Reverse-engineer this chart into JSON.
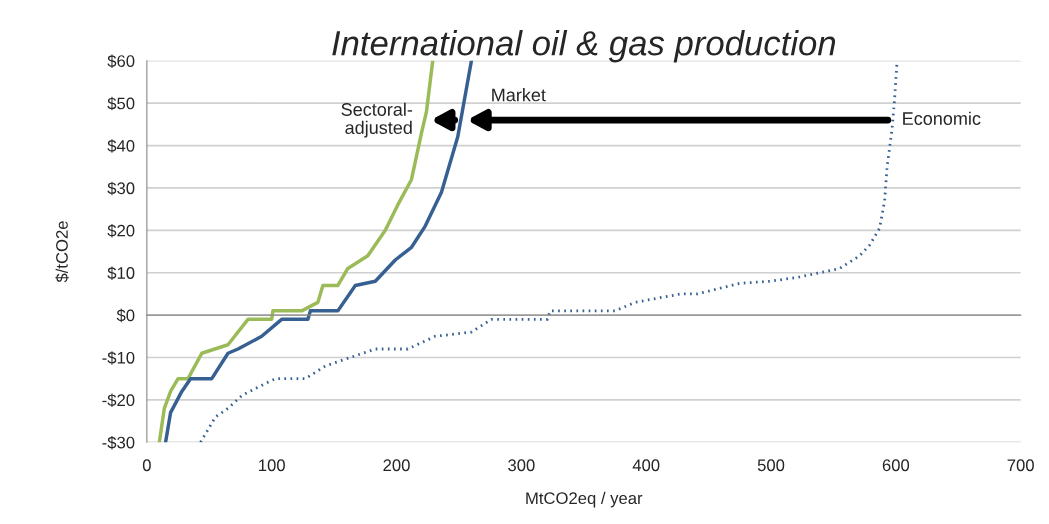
{
  "chart_data": {
    "type": "line",
    "title": "International oil & gas production",
    "xlabel": "MtCO2eq / year",
    "ylabel": "$/tCO2e",
    "xlim": [
      0,
      700
    ],
    "xticks": [
      0,
      100,
      200,
      300,
      400,
      500,
      600,
      700
    ],
    "ylim": [
      -30,
      60
    ],
    "yticks": [
      {
        "value": -30,
        "label": "-$30"
      },
      {
        "value": -20,
        "label": "-$20"
      },
      {
        "value": -10,
        "label": "-$10"
      },
      {
        "value": 0,
        "label": "$0"
      },
      {
        "value": 10,
        "label": "$10"
      },
      {
        "value": 20,
        "label": "$20"
      },
      {
        "value": 30,
        "label": "$30"
      },
      {
        "value": 40,
        "label": "$40"
      },
      {
        "value": 50,
        "label": "$50"
      },
      {
        "value": 60,
        "label": "$60"
      }
    ],
    "grid": "y",
    "series": [
      {
        "color": "#9bbb59",
        "line_style": "solid",
        "x": [
          10,
          14,
          19,
          25,
          33,
          44,
          65,
          81,
          100,
          101,
          124,
          137,
          141,
          153,
          161,
          177,
          191,
          201,
          212,
          220,
          224,
          229
        ],
        "values": [
          -30,
          -22,
          -18,
          -15,
          -15,
          -9,
          -7,
          -1,
          -1,
          1,
          1,
          3,
          7,
          7,
          11,
          14,
          20,
          26,
          32,
          43,
          48,
          60
        ]
      },
      {
        "color": "#376092",
        "line_style": "solid",
        "x": [
          15,
          19,
          28,
          35,
          52,
          65,
          73,
          92,
          108,
          129,
          131,
          153,
          167,
          183,
          199,
          212,
          223,
          236,
          249,
          260
        ],
        "values": [
          -30,
          -23,
          -18,
          -15,
          -15,
          -9,
          -8,
          -5,
          -1,
          -1,
          1,
          1,
          7,
          8,
          13,
          16,
          21,
          29,
          42,
          60
        ]
      },
      {
        "color": "#376092",
        "line_style": "dotted",
        "x": [
          43,
          55,
          65,
          76,
          89,
          103,
          127,
          143,
          153,
          183,
          209,
          231,
          260,
          276,
          321,
          323,
          375,
          391,
          409,
          428,
          441,
          475,
          500,
          523,
          555,
          571,
          579,
          587,
          591,
          593,
          597,
          599,
          601
        ],
        "values": [
          -30,
          -24,
          -22,
          -19,
          -17,
          -15,
          -15,
          -12,
          -11,
          -8,
          -8,
          -5,
          -4,
          -1,
          -1,
          1,
          1,
          3,
          4,
          5,
          5,
          7.5,
          8,
          9,
          11,
          14,
          16.5,
          20.5,
          27,
          35,
          44,
          51,
          60
        ]
      }
    ],
    "annotations": [
      {
        "text": "Sectoral-\nadjusted",
        "x": 222,
        "y": 46
      },
      {
        "text": "Market",
        "x": 251,
        "y": 46
      },
      {
        "text": "Economic",
        "x": 598,
        "y": 46
      }
    ]
  }
}
